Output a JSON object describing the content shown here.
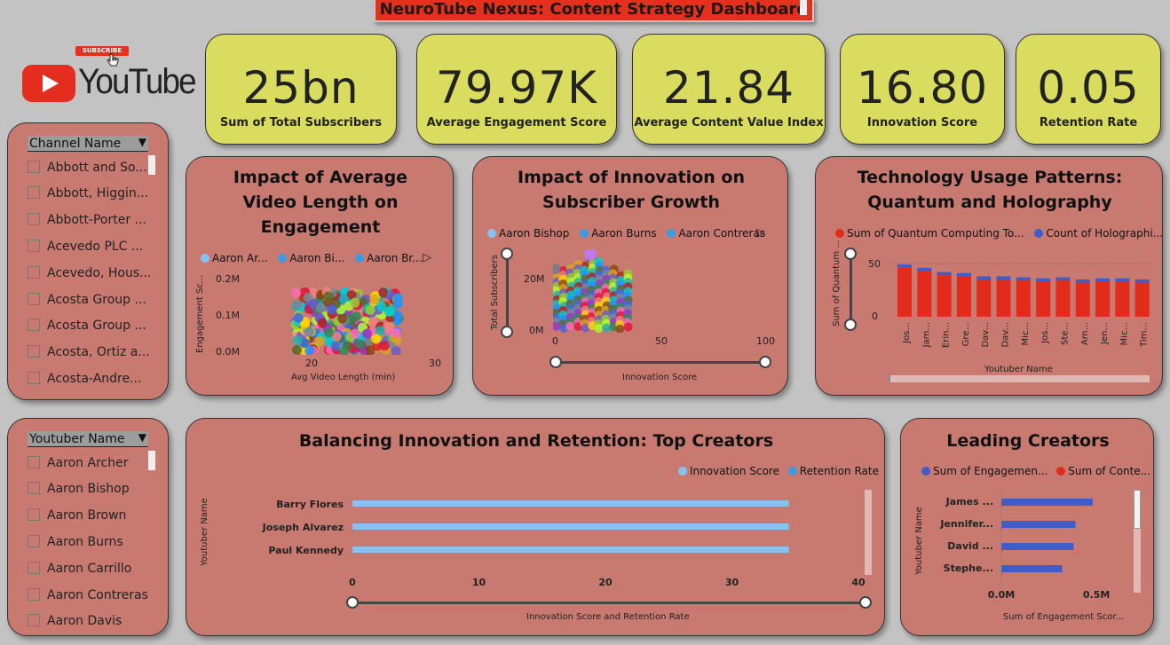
{
  "header": {
    "title": "NeuroTube Nexus: Content Strategy Dashboard"
  },
  "logo": {
    "badge": "SUBSCRIBE",
    "wordmark": "YouTube"
  },
  "colors": {
    "panel": "#c87970",
    "kpi": "#d9dc5f",
    "banner": "#e3311d",
    "light_blue": "#86c3f0",
    "blue": "#3c9be0",
    "navy_blue": "#3f5cc8",
    "red": "#e22b1a"
  },
  "kpis": [
    {
      "value": "25bn",
      "label": "Sum of Total Subscribers"
    },
    {
      "value": "79.97K",
      "label": "Average Engagement Score"
    },
    {
      "value": "21.84",
      "label": "Average Content Value Index"
    },
    {
      "value": "16.80",
      "label": "Innovation Score"
    },
    {
      "value": "0.05",
      "label": "Retention Rate"
    }
  ],
  "slicer_channel": {
    "header": "Channel Name",
    "items": [
      "Abbott and So...",
      "Abbott, Higgin...",
      "Abbott-Porter ...",
      "Acevedo PLC ...",
      "Acevedo, Hous...",
      "Acosta Group ...",
      "Acosta Group ...",
      "Acosta, Ortiz a...",
      "Acosta-Andre..."
    ]
  },
  "slicer_youtuber": {
    "header": "Youtuber Name",
    "items": [
      "Aaron Archer",
      "Aaron Bishop",
      "Aaron Brown",
      "Aaron Burns",
      "Aaron Carrillo",
      "Aaron Contreras",
      "Aaron Davis"
    ]
  },
  "chart1": {
    "title_lines": [
      "Impact of Average",
      "Video Length on",
      "Engagement"
    ],
    "legend": [
      "Aaron Ar...",
      "Aaron Bi...",
      "Aaron Br..."
    ],
    "ylabel": "Engagement Sc...",
    "xlabel": "Avg Video Length (min)",
    "yticks": [
      "0.2M",
      "0.1M",
      "0.0M"
    ],
    "xticks": [
      "20",
      "30"
    ]
  },
  "chart2": {
    "title_lines": [
      "Impact of Innovation on",
      "Subscriber Growth"
    ],
    "legend": [
      "Aaron Bishop",
      "Aaron Burns",
      "Aaron Contreras"
    ],
    "ylabel": "Total Subscribers",
    "xlabel": "Innovation Score",
    "yticks": [
      "20M",
      "0M"
    ],
    "xticks": [
      "0",
      "50",
      "100"
    ]
  },
  "chart3": {
    "title_lines": [
      "Technology Usage Patterns:",
      "Quantum and Holography"
    ],
    "legend": [
      "Sum of Quantum Computing To...",
      "Count of Holographi..."
    ],
    "ylabel": "Sum of Quantum ...",
    "xlabel": "Youtuber Name",
    "yticks": [
      "50",
      "0"
    ]
  },
  "chart4": {
    "title": "Balancing Innovation and Retention: Top Creators",
    "legend": [
      "Innovation Score",
      "Retention Rate"
    ],
    "ylabel": "Youtuber Name",
    "xlabel": "Innovation Score and Retention Rate",
    "xticks": [
      "0",
      "10",
      "20",
      "30",
      "40"
    ]
  },
  "chart5": {
    "title": "Leading Creators",
    "legend": [
      "Sum of Engagemen...",
      "Sum of Conte..."
    ],
    "ylabel": "Youtuber Name",
    "xlabel": "Sum of Engagement Scor...",
    "xticks": [
      "0.0M",
      "0.5M"
    ]
  },
  "chart_data": [
    {
      "type": "scatter",
      "title": "Impact of Average Video Length on Engagement",
      "xlabel": "Avg Video Length (min)",
      "ylabel": "Engagement Sc...",
      "xlim": [
        15,
        30
      ],
      "ylim": [
        0,
        200000
      ],
      "legend": [
        "Aaron Ar...",
        "Aaron Bi...",
        "Aaron Br..."
      ],
      "note": "dense cloud of points between x 20-29 and y 0-100000"
    },
    {
      "type": "scatter",
      "title": "Impact of Innovation on Subscriber Growth",
      "xlabel": "Innovation Score",
      "ylabel": "Total Subscribers",
      "xlim": [
        0,
        100
      ],
      "ylim": [
        0,
        30000000
      ],
      "legend": [
        "Aaron Bishop",
        "Aaron Burns",
        "Aaron Contreras"
      ]
    },
    {
      "type": "bar",
      "title": "Technology Usage Patterns: Quantum and Holography",
      "xlabel": "Youtuber Name",
      "ylabel": "Sum of Quantum ...",
      "categories": [
        "Jos...",
        "Jam...",
        "Erin...",
        "Gre...",
        "Dav...",
        "Dav...",
        "Mic...",
        "Jos...",
        "Ste...",
        "Am...",
        "Jen...",
        "Mic...",
        "Tim..."
      ],
      "series": [
        {
          "name": "Sum of Quantum Computing To...",
          "values": [
            46,
            43,
            39,
            38,
            35,
            35,
            34,
            33,
            34,
            32,
            33,
            33,
            32
          ]
        },
        {
          "name": "Count of Holographi...",
          "values": [
            3,
            3,
            3,
            3,
            3,
            3,
            3,
            3,
            3,
            3,
            3,
            3,
            3
          ]
        }
      ],
      "ylim": [
        0,
        60
      ]
    },
    {
      "type": "bar",
      "title": "Balancing Innovation and Retention: Top Creators",
      "orientation": "horizontal",
      "categories": [
        "Barry Flores",
        "Joseph Alvarez",
        "Paul Kennedy"
      ],
      "series": [
        {
          "name": "Innovation Score",
          "values": [
            34.5,
            34.5,
            34.5
          ]
        },
        {
          "name": "Retention Rate",
          "values": [
            0.05,
            0.05,
            0.05
          ]
        }
      ],
      "xlim": [
        0,
        40
      ],
      "xlabel": "Innovation Score and Retention Rate",
      "ylabel": "Youtuber Name"
    },
    {
      "type": "bar",
      "title": "Leading Creators",
      "orientation": "horizontal",
      "categories": [
        "James ...",
        "Jennifer...",
        "David ...",
        "Stephe..."
      ],
      "series": [
        {
          "name": "Sum of Engagemen...",
          "values": [
            0.48,
            0.39,
            0.38,
            0.32
          ]
        },
        {
          "name": "Sum of Conte...",
          "values": [
            0,
            0,
            0,
            0
          ]
        }
      ],
      "xlim": [
        0,
        0.7
      ],
      "xlabel": "Sum of Engagement Scor...",
      "ylabel": "Youtuber Name"
    }
  ]
}
